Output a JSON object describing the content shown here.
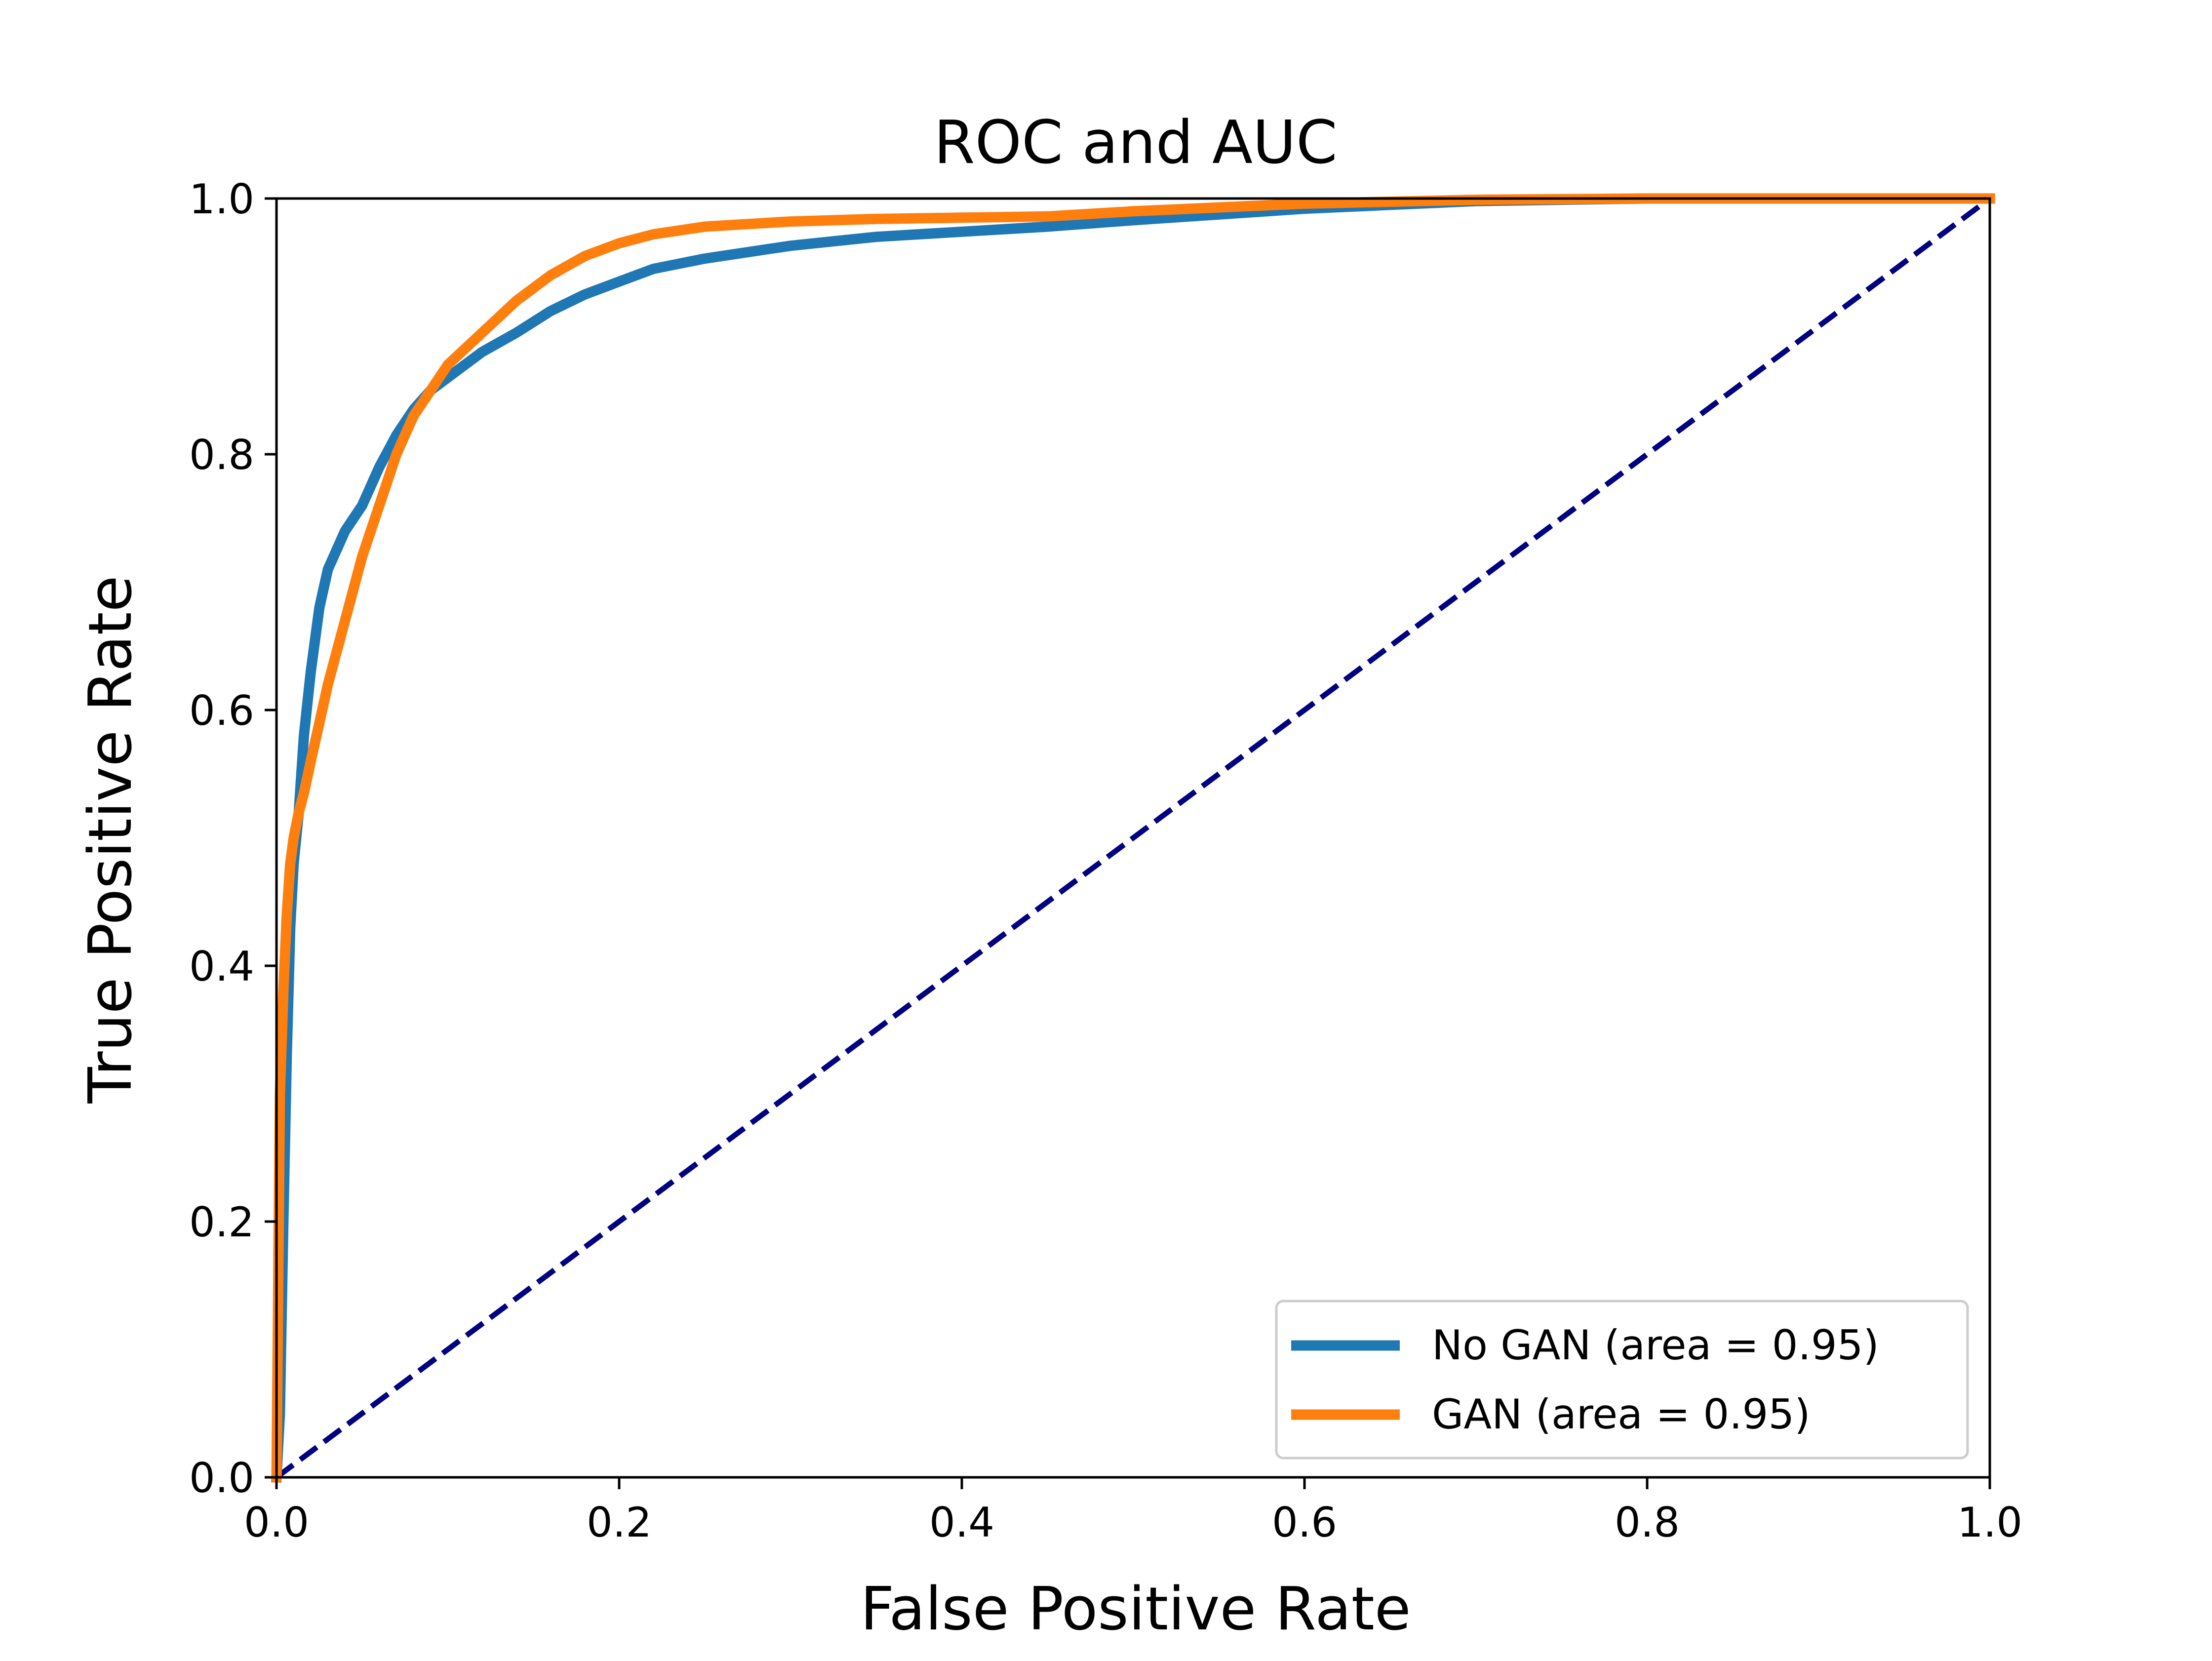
{
  "chart_data": {
    "type": "line",
    "title": "ROC and AUC",
    "xlabel": "False Positive Rate",
    "ylabel": "True Positive Rate",
    "xlim": [
      0.0,
      1.0
    ],
    "ylim": [
      0.0,
      1.0
    ],
    "xticks": [
      "0.0",
      "0.2",
      "0.4",
      "0.6",
      "0.8",
      "1.0"
    ],
    "yticks": [
      "0.0",
      "0.2",
      "0.4",
      "0.6",
      "0.8",
      "1.0"
    ],
    "grid": false,
    "legend_position": "lower-right",
    "series": [
      {
        "name": "No GAN (area = 0.95)",
        "color": "#1f77b4",
        "style": "solid",
        "x": [
          0.0,
          0.002,
          0.004,
          0.006,
          0.008,
          0.01,
          0.013,
          0.016,
          0.02,
          0.025,
          0.03,
          0.04,
          0.05,
          0.06,
          0.07,
          0.08,
          0.09,
          0.1,
          0.12,
          0.14,
          0.16,
          0.18,
          0.2,
          0.22,
          0.25,
          0.3,
          0.35,
          0.4,
          0.45,
          0.5,
          0.6,
          0.7,
          0.8,
          0.9,
          1.0
        ],
        "y": [
          0.0,
          0.05,
          0.2,
          0.33,
          0.43,
          0.48,
          0.52,
          0.58,
          0.63,
          0.68,
          0.71,
          0.74,
          0.76,
          0.79,
          0.815,
          0.835,
          0.85,
          0.86,
          0.88,
          0.895,
          0.912,
          0.925,
          0.935,
          0.945,
          0.953,
          0.963,
          0.97,
          0.974,
          0.978,
          0.983,
          0.992,
          0.998,
          1.0,
          1.0,
          1.0
        ]
      },
      {
        "name": "GAN (area = 0.95)",
        "color": "#ff7f0e",
        "style": "solid",
        "x": [
          0.0,
          0.002,
          0.004,
          0.006,
          0.008,
          0.01,
          0.013,
          0.016,
          0.02,
          0.025,
          0.03,
          0.04,
          0.05,
          0.06,
          0.07,
          0.08,
          0.09,
          0.1,
          0.12,
          0.14,
          0.16,
          0.18,
          0.2,
          0.22,
          0.25,
          0.3,
          0.35,
          0.4,
          0.45,
          0.5,
          0.6,
          0.7,
          0.8,
          0.9,
          1.0
        ],
        "y": [
          0.0,
          0.3,
          0.38,
          0.44,
          0.48,
          0.5,
          0.52,
          0.535,
          0.56,
          0.59,
          0.62,
          0.67,
          0.72,
          0.76,
          0.8,
          0.83,
          0.85,
          0.87,
          0.895,
          0.92,
          0.94,
          0.955,
          0.965,
          0.972,
          0.978,
          0.982,
          0.984,
          0.985,
          0.986,
          0.99,
          0.996,
          0.999,
          1.0,
          1.0,
          1.0
        ]
      },
      {
        "name": "",
        "color": "#000080",
        "style": "dashed",
        "x": [
          0.0,
          1.0
        ],
        "y": [
          0.0,
          1.0
        ]
      }
    ]
  }
}
